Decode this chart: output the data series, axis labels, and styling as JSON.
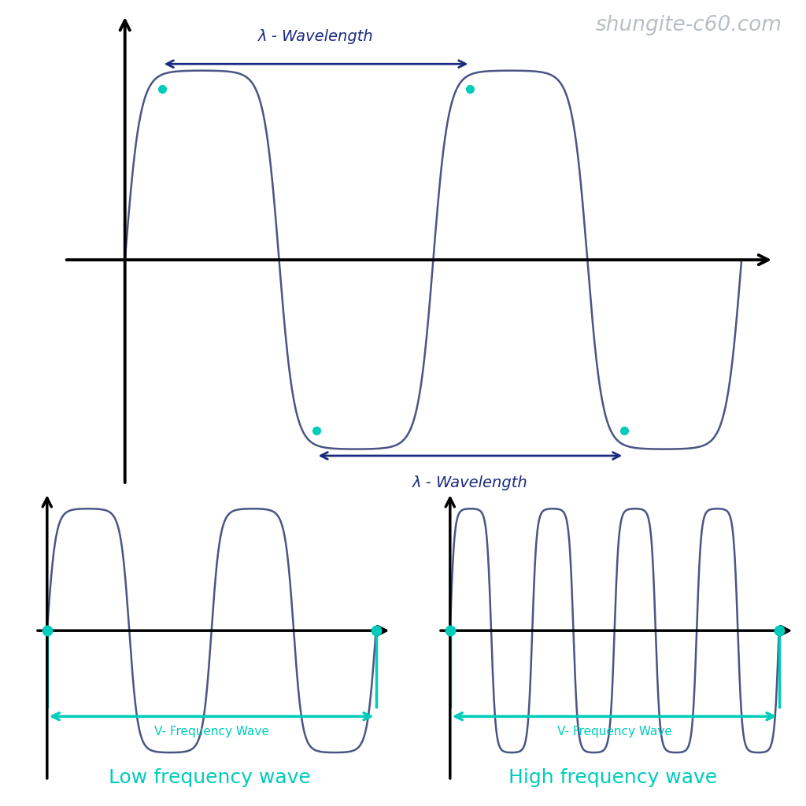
{
  "background_color": "#ffffff",
  "wave_color": "#4a5585",
  "cyan_color": "#00ccbb",
  "arrow_color": "#1a2a80",
  "axis_color": "#000000",
  "watermark_color": "#aab4bc",
  "watermark_text": "shungite-c60.com",
  "lambda_label": "λ - Wavelength",
  "freq_label": "V- Frequency Wave",
  "low_label": "Low frequency wave",
  "high_label": "High frequency wave"
}
